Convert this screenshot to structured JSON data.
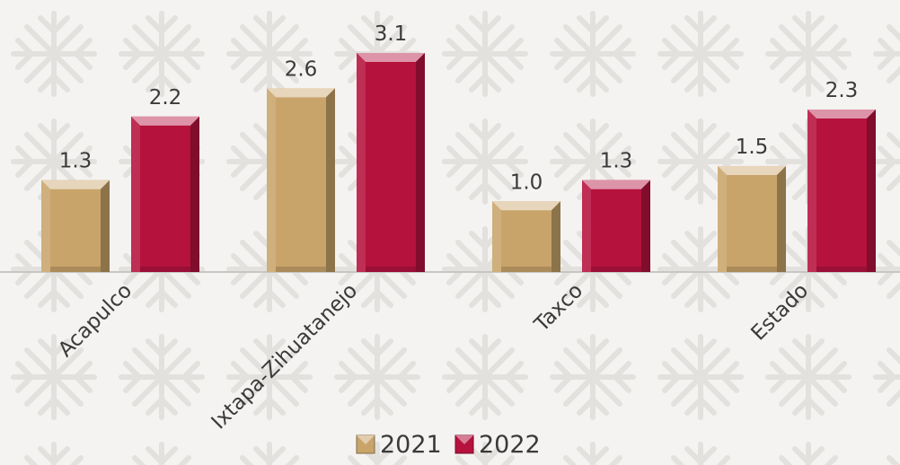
{
  "chart_data": {
    "type": "bar",
    "categories": [
      "Acapulco",
      "Ixtapa-Zihuatanejo",
      "Taxco",
      "Estado"
    ],
    "series": [
      {
        "name": "2021",
        "values": [
          1.3,
          2.6,
          1.0,
          1.5
        ],
        "color": "#c9a46a"
      },
      {
        "name": "2022",
        "values": [
          2.2,
          3.1,
          1.3,
          2.3
        ],
        "color": "#b5123e"
      }
    ],
    "ylim": [
      0,
      3.2
    ],
    "grid": false,
    "legend": "bottom-center"
  }
}
